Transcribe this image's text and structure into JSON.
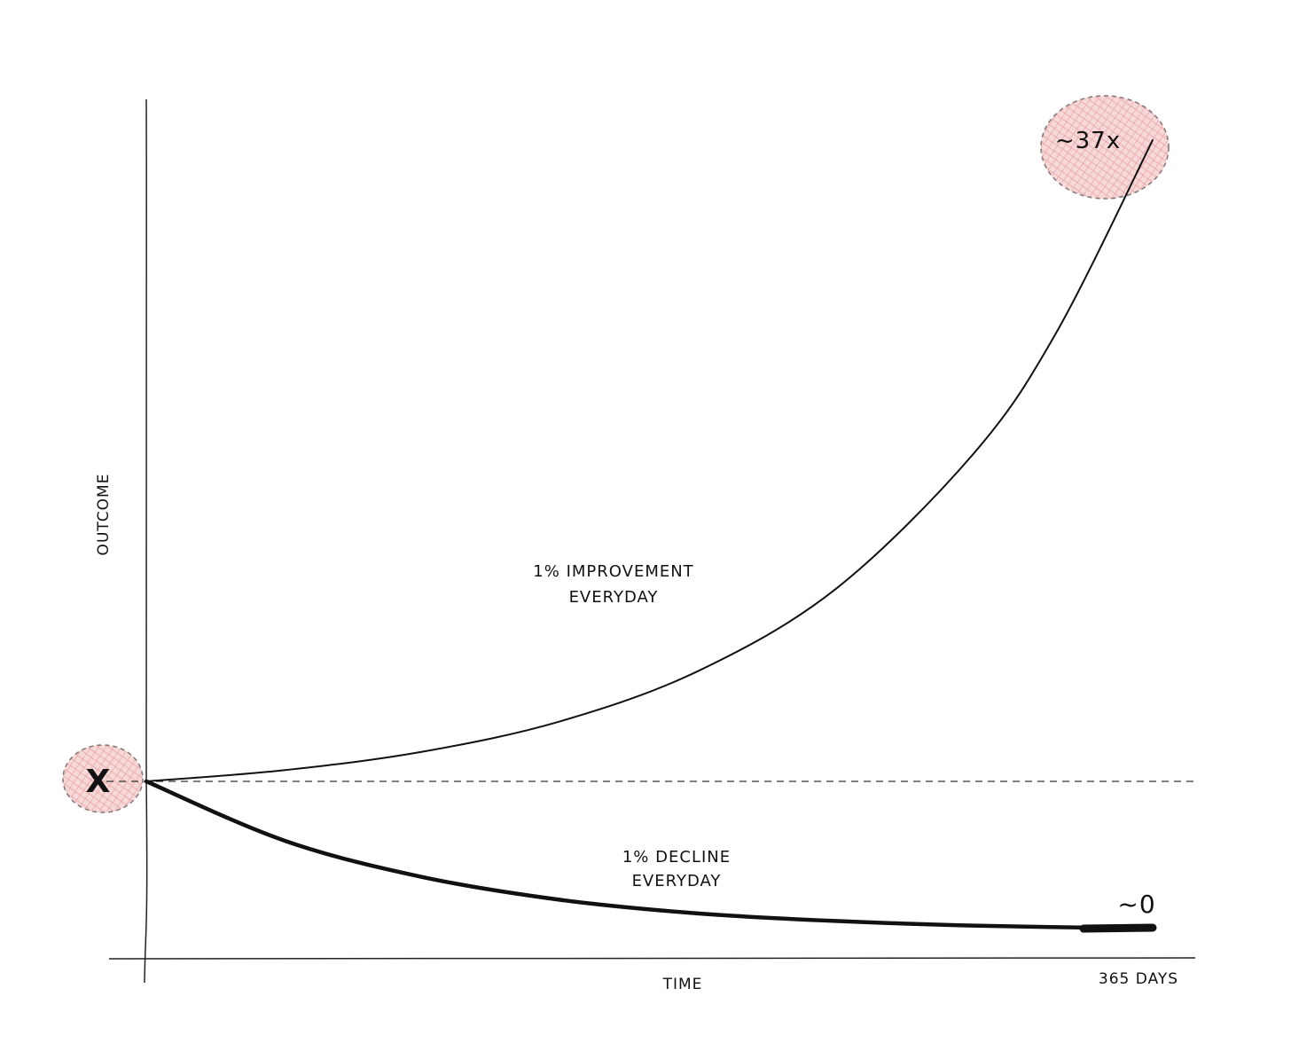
{
  "chart_data": {
    "type": "line",
    "x_axis": {
      "label": "TIME",
      "end_tick": "365 DAYS",
      "range": [
        0,
        365
      ]
    },
    "y_axis": {
      "label": "OUTCOME",
      "start_marker": "X"
    },
    "baseline": {
      "style": "dashed",
      "value": 1
    },
    "series": [
      {
        "name": "1% IMPROVEMENT EVERYDAY",
        "label_lines": [
          "1% IMPROVEMENT",
          "EVERYDAY"
        ],
        "end_label": "~37x",
        "x": [
          0,
          50,
          100,
          150,
          200,
          250,
          300,
          330,
          365
        ],
        "values": [
          1,
          1.64,
          2.7,
          4.44,
          7.32,
          12.03,
          19.79,
          26.73,
          37.78
        ]
      },
      {
        "name": "1% DECLINE EVERYDAY",
        "label_lines": [
          "1% DECLINE",
          "EVERYDAY"
        ],
        "end_label": "~0",
        "x": [
          0,
          50,
          100,
          150,
          200,
          250,
          300,
          365
        ],
        "values": [
          1,
          0.61,
          0.37,
          0.22,
          0.13,
          0.08,
          0.05,
          0.03
        ]
      }
    ],
    "highlight_color": "#e07a7a",
    "grid": false,
    "legend": "none"
  }
}
